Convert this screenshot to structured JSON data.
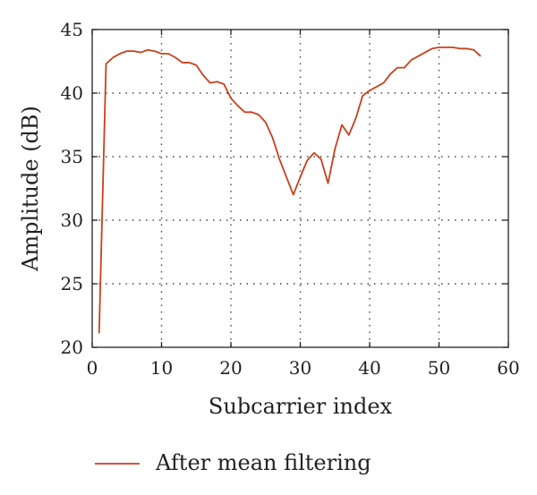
{
  "chart_data": {
    "type": "line",
    "title": "",
    "xlabel": "Subcarrier index",
    "ylabel": "Amplitude (dB)",
    "xlim": [
      0,
      60
    ],
    "ylim": [
      20,
      45
    ],
    "xticks": [
      0,
      10,
      20,
      30,
      40,
      50,
      60
    ],
    "yticks": [
      20,
      25,
      30,
      35,
      40,
      45
    ],
    "xtick_labels": [
      "0",
      "10",
      "20",
      "30",
      "40",
      "50",
      "60"
    ],
    "ytick_labels": [
      "20",
      "25",
      "30",
      "35",
      "40",
      "45"
    ],
    "grid": true,
    "legend_position": "bottom",
    "series": [
      {
        "name": "After mean filtering",
        "color": "#c8401c",
        "x": [
          1,
          2,
          3,
          4,
          5,
          6,
          7,
          8,
          9,
          10,
          11,
          12,
          13,
          14,
          15,
          16,
          17,
          18,
          19,
          20,
          21,
          22,
          23,
          24,
          25,
          26,
          27,
          28,
          29,
          30,
          31,
          32,
          33,
          34,
          35,
          36,
          37,
          38,
          39,
          40,
          41,
          42,
          43,
          44,
          45,
          46,
          47,
          48,
          49,
          50,
          51,
          52,
          53,
          54,
          55,
          56
        ],
        "y": [
          21.1,
          42.3,
          42.8,
          43.1,
          43.3,
          43.3,
          43.2,
          43.4,
          43.3,
          43.1,
          43.1,
          42.8,
          42.4,
          42.4,
          42.2,
          41.4,
          40.8,
          40.9,
          40.7,
          39.6,
          39.0,
          38.5,
          38.5,
          38.3,
          37.7,
          36.5,
          34.8,
          33.4,
          32.0,
          33.4,
          34.7,
          35.3,
          34.8,
          32.9,
          35.6,
          37.5,
          36.7,
          38.0,
          39.8,
          40.2,
          40.5,
          40.8,
          41.5,
          42.0,
          42.0,
          42.6,
          42.9,
          43.2,
          43.5,
          43.6,
          43.6,
          43.6,
          43.5,
          43.5,
          43.4,
          42.9
        ]
      }
    ]
  }
}
